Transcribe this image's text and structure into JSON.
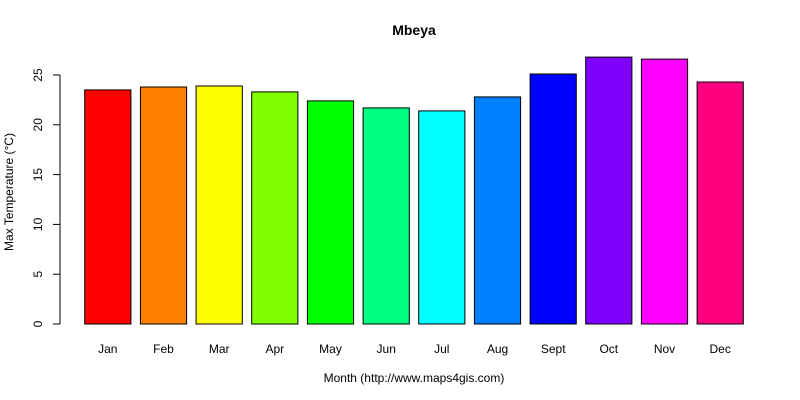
{
  "chart_data": {
    "type": "bar",
    "title": "Mbeya",
    "xlabel": "Month (http://www.maps4gis.com)",
    "ylabel": "Max Temperature (°C)",
    "ylim": [
      0,
      25
    ],
    "yticks": [
      0,
      5,
      10,
      15,
      20,
      25
    ],
    "categories": [
      "Jan",
      "Feb",
      "Mar",
      "Apr",
      "May",
      "Jun",
      "Jul",
      "Aug",
      "Sept",
      "Oct",
      "Nov",
      "Dec"
    ],
    "values": [
      23.5,
      23.8,
      23.9,
      23.3,
      22.4,
      21.7,
      21.4,
      22.8,
      25.1,
      26.8,
      26.6,
      24.3
    ],
    "colors": [
      "#FF0000",
      "#FF8000",
      "#FFFF00",
      "#80FF00",
      "#00FF00",
      "#00FF80",
      "#00FFFF",
      "#0080FF",
      "#0000FF",
      "#8000FF",
      "#FF00FF",
      "#FF0080"
    ],
    "grid": false,
    "legend": "none"
  }
}
